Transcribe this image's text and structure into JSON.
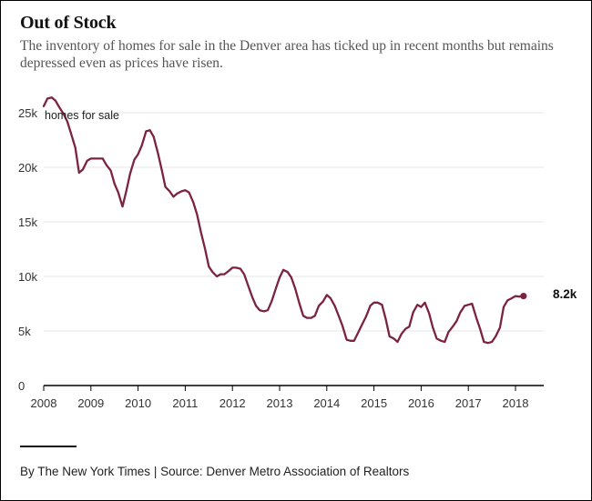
{
  "header": {
    "title": "Out of Stock",
    "subtitle": "The inventory of homes for sale in the Denver area has ticked up in recent months but remains depressed even as prices have risen."
  },
  "footer": {
    "source": "By The New York Times | Source: Denver Metro Association of Realtors"
  },
  "colors": {
    "series": "#7b2340",
    "grid": "#e6e6e6",
    "axis": "#000000"
  },
  "chart_data": {
    "type": "line",
    "title": "Out of Stock",
    "ylabel": "",
    "xlabel": "",
    "ylim": [
      0,
      25000
    ],
    "xlim": [
      2008.0,
      2018.6
    ],
    "grid": true,
    "y_ticks": [
      0,
      5000,
      10000,
      15000,
      20000,
      25000
    ],
    "y_tick_labels": [
      "0",
      "5k",
      "10k",
      "15k",
      "20k",
      "25k"
    ],
    "x_ticks": [
      2008,
      2009,
      2010,
      2011,
      2012,
      2013,
      2014,
      2015,
      2016,
      2017,
      2018
    ],
    "x_tick_labels": [
      "2008",
      "2009",
      "2010",
      "2011",
      "2012",
      "2013",
      "2014",
      "2015",
      "2016",
      "2017",
      "2018"
    ],
    "series": [
      {
        "name": "homes for sale",
        "end_label": "8.2k",
        "points": [
          [
            2008.0,
            25600
          ],
          [
            2008.08,
            26300
          ],
          [
            2008.17,
            26400
          ],
          [
            2008.25,
            26100
          ],
          [
            2008.33,
            25500
          ],
          [
            2008.42,
            24900
          ],
          [
            2008.5,
            24200
          ],
          [
            2008.58,
            23100
          ],
          [
            2008.67,
            21800
          ],
          [
            2008.75,
            19500
          ],
          [
            2008.83,
            19800
          ],
          [
            2008.92,
            20600
          ],
          [
            2009.0,
            20800
          ],
          [
            2009.08,
            20800
          ],
          [
            2009.17,
            20800
          ],
          [
            2009.25,
            20800
          ],
          [
            2009.33,
            20200
          ],
          [
            2009.42,
            19700
          ],
          [
            2009.5,
            18500
          ],
          [
            2009.58,
            17700
          ],
          [
            2009.67,
            16400
          ],
          [
            2009.75,
            17800
          ],
          [
            2009.83,
            19400
          ],
          [
            2009.92,
            20700
          ],
          [
            2010.0,
            21200
          ],
          [
            2010.08,
            22000
          ],
          [
            2010.17,
            23300
          ],
          [
            2010.25,
            23400
          ],
          [
            2010.33,
            22800
          ],
          [
            2010.42,
            21300
          ],
          [
            2010.5,
            19800
          ],
          [
            2010.58,
            18200
          ],
          [
            2010.67,
            17800
          ],
          [
            2010.75,
            17300
          ],
          [
            2010.83,
            17600
          ],
          [
            2010.92,
            17800
          ],
          [
            2011.0,
            17900
          ],
          [
            2011.08,
            17700
          ],
          [
            2011.17,
            16800
          ],
          [
            2011.25,
            15700
          ],
          [
            2011.33,
            14100
          ],
          [
            2011.42,
            12500
          ],
          [
            2011.5,
            10900
          ],
          [
            2011.58,
            10400
          ],
          [
            2011.67,
            10000
          ],
          [
            2011.75,
            10200
          ],
          [
            2011.83,
            10200
          ],
          [
            2011.92,
            10500
          ],
          [
            2012.0,
            10800
          ],
          [
            2012.08,
            10800
          ],
          [
            2012.17,
            10700
          ],
          [
            2012.25,
            10200
          ],
          [
            2012.33,
            9200
          ],
          [
            2012.42,
            8100
          ],
          [
            2012.5,
            7300
          ],
          [
            2012.58,
            6900
          ],
          [
            2012.67,
            6800
          ],
          [
            2012.75,
            6900
          ],
          [
            2012.83,
            7700
          ],
          [
            2012.92,
            8900
          ],
          [
            2013.0,
            9900
          ],
          [
            2013.08,
            10600
          ],
          [
            2013.17,
            10400
          ],
          [
            2013.25,
            9900
          ],
          [
            2013.33,
            8900
          ],
          [
            2013.42,
            7500
          ],
          [
            2013.5,
            6400
          ],
          [
            2013.58,
            6200
          ],
          [
            2013.67,
            6200
          ],
          [
            2013.75,
            6400
          ],
          [
            2013.83,
            7300
          ],
          [
            2013.92,
            7700
          ],
          [
            2014.0,
            8300
          ],
          [
            2014.08,
            8000
          ],
          [
            2014.17,
            7300
          ],
          [
            2014.25,
            6400
          ],
          [
            2014.33,
            5500
          ],
          [
            2014.42,
            4200
          ],
          [
            2014.5,
            4100
          ],
          [
            2014.58,
            4100
          ],
          [
            2014.67,
            4900
          ],
          [
            2014.75,
            5600
          ],
          [
            2014.83,
            6300
          ],
          [
            2014.92,
            7300
          ],
          [
            2015.0,
            7600
          ],
          [
            2015.08,
            7600
          ],
          [
            2015.17,
            7400
          ],
          [
            2015.25,
            6100
          ],
          [
            2015.33,
            4500
          ],
          [
            2015.42,
            4300
          ],
          [
            2015.5,
            4000
          ],
          [
            2015.58,
            4700
          ],
          [
            2015.67,
            5200
          ],
          [
            2015.75,
            5400
          ],
          [
            2015.83,
            6700
          ],
          [
            2015.92,
            7400
          ],
          [
            2016.0,
            7200
          ],
          [
            2016.08,
            7600
          ],
          [
            2016.17,
            6600
          ],
          [
            2016.25,
            5300
          ],
          [
            2016.33,
            4300
          ],
          [
            2016.42,
            4100
          ],
          [
            2016.5,
            4000
          ],
          [
            2016.58,
            4900
          ],
          [
            2016.67,
            5400
          ],
          [
            2016.75,
            5900
          ],
          [
            2016.83,
            6700
          ],
          [
            2016.92,
            7300
          ],
          [
            2017.0,
            7400
          ],
          [
            2017.08,
            7500
          ],
          [
            2017.17,
            6200
          ],
          [
            2017.25,
            5200
          ],
          [
            2017.33,
            4000
          ],
          [
            2017.42,
            3900
          ],
          [
            2017.5,
            4000
          ],
          [
            2017.58,
            4500
          ],
          [
            2017.67,
            5300
          ],
          [
            2017.75,
            7200
          ],
          [
            2017.83,
            7800
          ],
          [
            2017.92,
            8000
          ],
          [
            2018.0,
            8200
          ],
          [
            2018.08,
            8150
          ],
          [
            2018.17,
            8200
          ]
        ]
      }
    ]
  }
}
